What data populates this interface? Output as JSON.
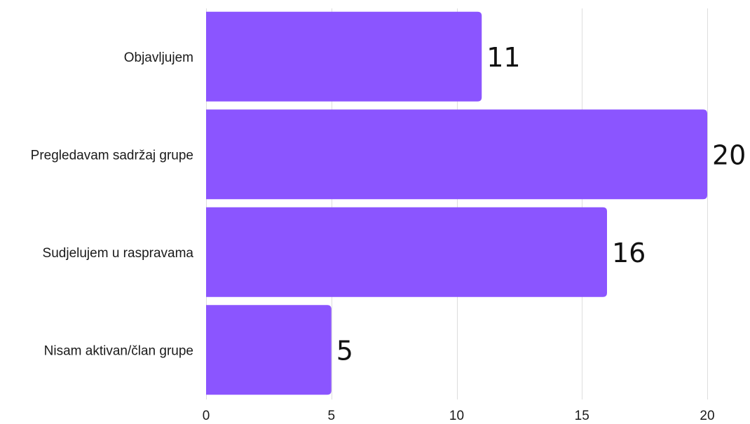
{
  "chart_data": {
    "type": "bar",
    "orientation": "horizontal",
    "categories": [
      "Objavljujem",
      "Pregledavam sadržaj grupe",
      "Sudjelujem u raspravama",
      "Nisam aktivan/član grupe"
    ],
    "values": [
      11,
      20,
      16,
      5
    ],
    "xlim": [
      0,
      20
    ],
    "xticks": [
      0,
      5,
      10,
      15,
      20
    ],
    "grid": true,
    "legend": "none",
    "bar_color": "#8b55ff",
    "data_labels": true
  }
}
